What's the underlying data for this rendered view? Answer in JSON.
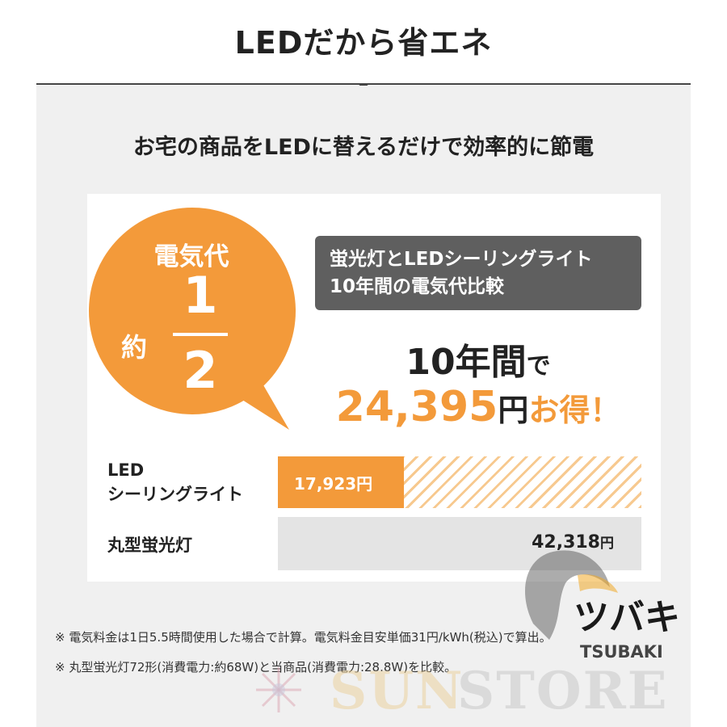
{
  "header": {
    "title": "LEDだから省エネ"
  },
  "subtitle": "お宅の商品をLEDに替えるだけで効率的に節電",
  "badge": {
    "label": "電気代",
    "approx": "約",
    "numerator": "1",
    "denominator": "2"
  },
  "comparison_box": {
    "line1": "蛍光灯とLEDシーリングライト",
    "line2": "10年間の電気代比較"
  },
  "savings": {
    "period_number": "10",
    "period_unit": "年間",
    "period_particle": "で",
    "amount": "24,395",
    "yen": "円",
    "suffix": "お得！"
  },
  "bars": {
    "led_label_line1": "LED",
    "led_label_line2": "シーリングライト",
    "led_value": "17,923円",
    "fluor_label": "丸型蛍光灯",
    "fluor_amount": "42,318",
    "fluor_yen": "円"
  },
  "notes": [
    "※ 電気料金は1日5.5時間使用した場合で計算。電気料金目安単価31円/kWh(税込)で算出。",
    "※ 丸型蛍光灯72形(消費電力:約68W)と当商品(消費電力:28.8W)を比較。"
  ],
  "watermark": {
    "brand_kana": "ツバキ",
    "brand_latin": "TSUBAKI",
    "store_part1": "SUN",
    "store_part2": "STORE"
  },
  "colors": {
    "accent_orange": "#f39a3a",
    "dark_gray": "#5f5f5f",
    "panel_gray": "#f0f0f0"
  }
}
